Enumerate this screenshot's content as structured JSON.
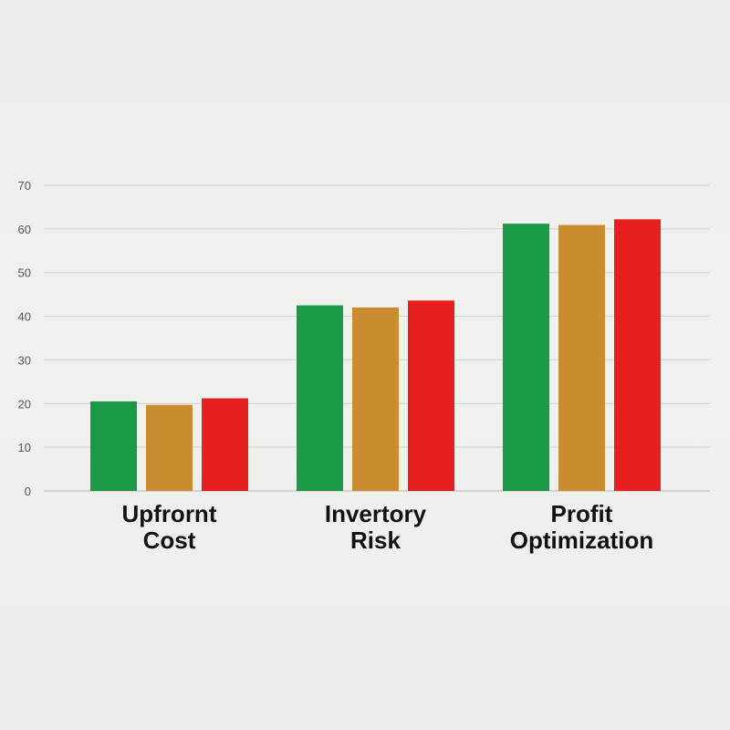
{
  "chart_data": {
    "type": "bar",
    "categories": [
      [
        "Upfrornt",
        "Cost"
      ],
      [
        "Invertory",
        "Risk"
      ],
      [
        "Profit",
        "Optimization"
      ]
    ],
    "series": [
      {
        "values": [
          20.5,
          42.5,
          61.2
        ],
        "color": "#1a9a46"
      },
      {
        "values": [
          19.7,
          42.0,
          60.9
        ],
        "color": "#c98c2e"
      },
      {
        "values": [
          21.2,
          43.6,
          62.2
        ],
        "color": "#e81f1f"
      }
    ],
    "yticks": [
      "0",
      "10",
      "20",
      "30",
      "40",
      "50",
      "60",
      "70"
    ],
    "ylim": [
      0,
      70
    ],
    "grid": true,
    "legend": "none",
    "title": "",
    "xlabel": "",
    "ylabel": ""
  }
}
